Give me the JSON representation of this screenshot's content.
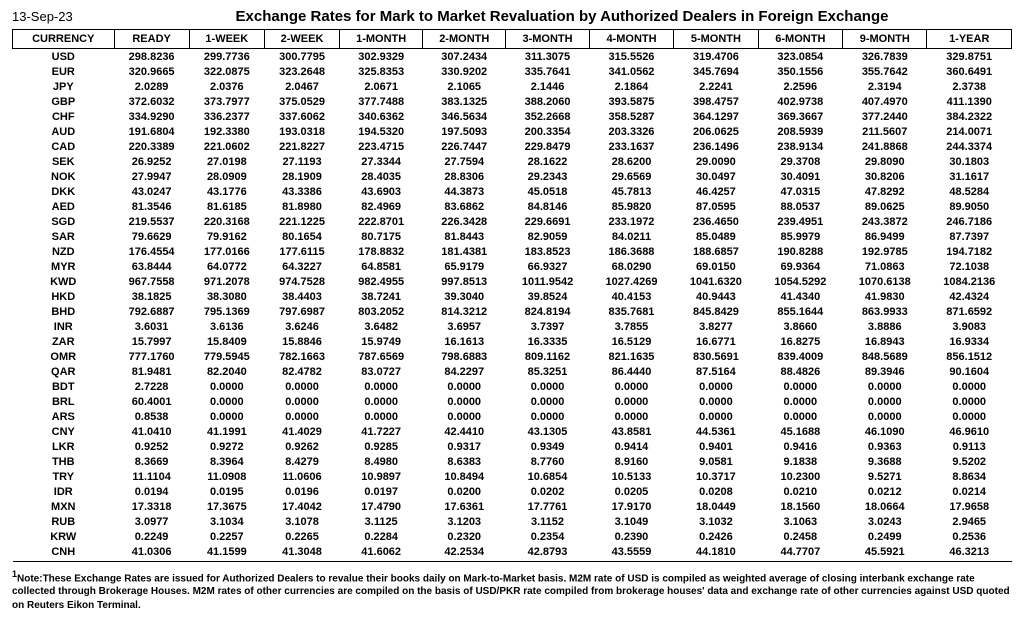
{
  "date": "13-Sep-23",
  "title": "Exchange Rates for Mark to Market Revaluation by Authorized Dealers in Foreign Exchange",
  "columns": [
    "CURRENCY",
    "READY",
    "1-WEEK",
    "2-WEEK",
    "1-MONTH",
    "2-MONTH",
    "3-MONTH",
    "4-MONTH",
    "5-MONTH",
    "6-MONTH",
    "9-MONTH",
    "1-YEAR"
  ],
  "rows": [
    [
      "USD",
      "298.8236",
      "299.7736",
      "300.7795",
      "302.9329",
      "307.2434",
      "311.3075",
      "315.5526",
      "319.4706",
      "323.0854",
      "326.7839",
      "329.8751"
    ],
    [
      "EUR",
      "320.9665",
      "322.0875",
      "323.2648",
      "325.8353",
      "330.9202",
      "335.7641",
      "341.0562",
      "345.7694",
      "350.1556",
      "355.7642",
      "360.6491"
    ],
    [
      "JPY",
      "2.0289",
      "2.0376",
      "2.0467",
      "2.0671",
      "2.1065",
      "2.1446",
      "2.1864",
      "2.2241",
      "2.2596",
      "2.3194",
      "2.3738"
    ],
    [
      "GBP",
      "372.6032",
      "373.7977",
      "375.0529",
      "377.7488",
      "383.1325",
      "388.2060",
      "393.5875",
      "398.4757",
      "402.9738",
      "407.4970",
      "411.1390"
    ],
    [
      "CHF",
      "334.9290",
      "336.2377",
      "337.6062",
      "340.6362",
      "346.5634",
      "352.2668",
      "358.5287",
      "364.1297",
      "369.3667",
      "377.2440",
      "384.2322"
    ],
    [
      "AUD",
      "191.6804",
      "192.3380",
      "193.0318",
      "194.5320",
      "197.5093",
      "200.3354",
      "203.3326",
      "206.0625",
      "208.5939",
      "211.5607",
      "214.0071"
    ],
    [
      "CAD",
      "220.3389",
      "221.0602",
      "221.8227",
      "223.4715",
      "226.7447",
      "229.8479",
      "233.1637",
      "236.1496",
      "238.9134",
      "241.8868",
      "244.3374"
    ],
    [
      "SEK",
      "26.9252",
      "27.0198",
      "27.1193",
      "27.3344",
      "27.7594",
      "28.1622",
      "28.6200",
      "29.0090",
      "29.3708",
      "29.8090",
      "30.1803"
    ],
    [
      "NOK",
      "27.9947",
      "28.0909",
      "28.1909",
      "28.4035",
      "28.8306",
      "29.2343",
      "29.6569",
      "30.0497",
      "30.4091",
      "30.8206",
      "31.1617"
    ],
    [
      "DKK",
      "43.0247",
      "43.1776",
      "43.3386",
      "43.6903",
      "44.3873",
      "45.0518",
      "45.7813",
      "46.4257",
      "47.0315",
      "47.8292",
      "48.5284"
    ],
    [
      "AED",
      "81.3546",
      "81.6185",
      "81.8980",
      "82.4969",
      "83.6862",
      "84.8146",
      "85.9820",
      "87.0595",
      "88.0537",
      "89.0625",
      "89.9050"
    ],
    [
      "SGD",
      "219.5537",
      "220.3168",
      "221.1225",
      "222.8701",
      "226.3428",
      "229.6691",
      "233.1972",
      "236.4650",
      "239.4951",
      "243.3872",
      "246.7186"
    ],
    [
      "SAR",
      "79.6629",
      "79.9162",
      "80.1654",
      "80.7175",
      "81.8443",
      "82.9059",
      "84.0211",
      "85.0489",
      "85.9979",
      "86.9499",
      "87.7397"
    ],
    [
      "NZD",
      "176.4554",
      "177.0166",
      "177.6115",
      "178.8832",
      "181.4381",
      "183.8523",
      "186.3688",
      "188.6857",
      "190.8288",
      "192.9785",
      "194.7182"
    ],
    [
      "MYR",
      "63.8444",
      "64.0772",
      "64.3227",
      "64.8581",
      "65.9179",
      "66.9327",
      "68.0290",
      "69.0150",
      "69.9364",
      "71.0863",
      "72.1038"
    ],
    [
      "KWD",
      "967.7558",
      "971.2078",
      "974.7528",
      "982.4955",
      "997.8513",
      "1011.9542",
      "1027.4269",
      "1041.6320",
      "1054.5292",
      "1070.6138",
      "1084.2136"
    ],
    [
      "HKD",
      "38.1825",
      "38.3080",
      "38.4403",
      "38.7241",
      "39.3040",
      "39.8524",
      "40.4153",
      "40.9443",
      "41.4340",
      "41.9830",
      "42.4324"
    ],
    [
      "BHD",
      "792.6887",
      "795.1369",
      "797.6987",
      "803.2052",
      "814.3212",
      "824.8194",
      "835.7681",
      "845.8429",
      "855.1644",
      "863.9933",
      "871.6592"
    ],
    [
      "INR",
      "3.6031",
      "3.6136",
      "3.6246",
      "3.6482",
      "3.6957",
      "3.7397",
      "3.7855",
      "3.8277",
      "3.8660",
      "3.8886",
      "3.9083"
    ],
    [
      "ZAR",
      "15.7997",
      "15.8409",
      "15.8846",
      "15.9749",
      "16.1613",
      "16.3335",
      "16.5129",
      "16.6771",
      "16.8275",
      "16.8943",
      "16.9334"
    ],
    [
      "OMR",
      "777.1760",
      "779.5945",
      "782.1663",
      "787.6569",
      "798.6883",
      "809.1162",
      "821.1635",
      "830.5691",
      "839.4009",
      "848.5689",
      "856.1512"
    ],
    [
      "QAR",
      "81.9481",
      "82.2040",
      "82.4782",
      "83.0727",
      "84.2297",
      "85.3251",
      "86.4440",
      "87.5164",
      "88.4826",
      "89.3946",
      "90.1604"
    ],
    [
      "BDT",
      "2.7228",
      "0.0000",
      "0.0000",
      "0.0000",
      "0.0000",
      "0.0000",
      "0.0000",
      "0.0000",
      "0.0000",
      "0.0000",
      "0.0000"
    ],
    [
      "BRL",
      "60.4001",
      "0.0000",
      "0.0000",
      "0.0000",
      "0.0000",
      "0.0000",
      "0.0000",
      "0.0000",
      "0.0000",
      "0.0000",
      "0.0000"
    ],
    [
      "ARS",
      "0.8538",
      "0.0000",
      "0.0000",
      "0.0000",
      "0.0000",
      "0.0000",
      "0.0000",
      "0.0000",
      "0.0000",
      "0.0000",
      "0.0000"
    ],
    [
      "CNY",
      "41.0410",
      "41.1991",
      "41.4029",
      "41.7227",
      "42.4410",
      "43.1305",
      "43.8581",
      "44.5361",
      "45.1688",
      "46.1090",
      "46.9610"
    ],
    [
      "LKR",
      "0.9252",
      "0.9272",
      "0.9262",
      "0.9285",
      "0.9317",
      "0.9349",
      "0.9414",
      "0.9401",
      "0.9416",
      "0.9363",
      "0.9113"
    ],
    [
      "THB",
      "8.3669",
      "8.3964",
      "8.4279",
      "8.4980",
      "8.6383",
      "8.7760",
      "8.9160",
      "9.0581",
      "9.1838",
      "9.3688",
      "9.5202"
    ],
    [
      "TRY",
      "11.1104",
      "11.0908",
      "11.0606",
      "10.9897",
      "10.8494",
      "10.6854",
      "10.5133",
      "10.3717",
      "10.2300",
      "9.5271",
      "8.8634"
    ],
    [
      "IDR",
      "0.0194",
      "0.0195",
      "0.0196",
      "0.0197",
      "0.0200",
      "0.0202",
      "0.0205",
      "0.0208",
      "0.0210",
      "0.0212",
      "0.0214"
    ],
    [
      "MXN",
      "17.3318",
      "17.3675",
      "17.4042",
      "17.4790",
      "17.6361",
      "17.7761",
      "17.9170",
      "18.0449",
      "18.1560",
      "18.0664",
      "17.9658"
    ],
    [
      "RUB",
      "3.0977",
      "3.1034",
      "3.1078",
      "3.1125",
      "3.1203",
      "3.1152",
      "3.1049",
      "3.1032",
      "3.1063",
      "3.0243",
      "2.9465"
    ],
    [
      "KRW",
      "0.2249",
      "0.2257",
      "0.2265",
      "0.2284",
      "0.2320",
      "0.2354",
      "0.2390",
      "0.2426",
      "0.2458",
      "0.2499",
      "0.2536"
    ],
    [
      "CNH",
      "41.0306",
      "41.1599",
      "41.3048",
      "41.6062",
      "42.2534",
      "42.8793",
      "43.5559",
      "44.1810",
      "44.7707",
      "45.5921",
      "46.3213"
    ]
  ],
  "footnote": "Note:These Exchange Rates are issued for Authorized Dealers to revalue their books daily on Mark-to-Market basis. M2M rate of USD is compiled as weighted average of closing interbank exchange rate collected through Brokerage Houses. M2M rates of other currencies are compiled on the basis of USD/PKR rate compiled from brokerage houses' data and exchange rate of other currencies against USD quoted on Reuters Eikon Terminal."
}
